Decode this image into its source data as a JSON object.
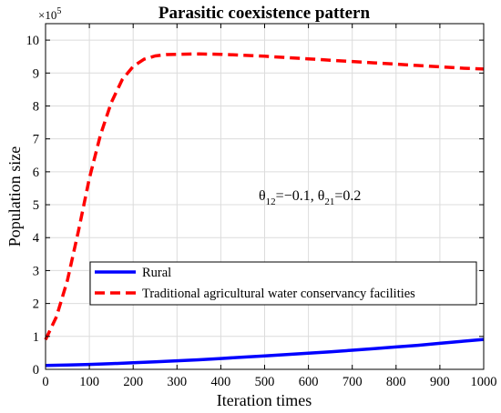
{
  "chart_data": {
    "type": "line",
    "title": "Parasitic coexistence pattern",
    "xlabel": "Iteration times",
    "ylabel": "Population size",
    "y_exponent_label": "×10",
    "y_exponent_power": "5",
    "xlim": [
      0,
      1000
    ],
    "ylim": [
      0,
      10.5
    ],
    "x_ticks": [
      "0",
      "100",
      "200",
      "300",
      "400",
      "500",
      "600",
      "700",
      "800",
      "900",
      "1000"
    ],
    "y_ticks": [
      "0",
      "1",
      "2",
      "3",
      "4",
      "5",
      "6",
      "7",
      "8",
      "9",
      "10"
    ],
    "grid": true,
    "legend_position": "lower-left",
    "annotation": {
      "theta1_symbol": "θ",
      "theta1_sub": "12",
      "theta1_value": "=−0.1, ",
      "theta2_symbol": "θ",
      "theta2_sub": "21",
      "theta2_value": "=0.2"
    },
    "series": [
      {
        "name": "Rural",
        "color": "#0000ff",
        "style": "solid",
        "x": [
          0,
          50,
          100,
          150,
          200,
          250,
          300,
          350,
          400,
          450,
          500,
          550,
          600,
          650,
          700,
          750,
          800,
          850,
          900,
          950,
          1000
        ],
        "y": [
          0.12,
          0.13,
          0.15,
          0.17,
          0.2,
          0.23,
          0.26,
          0.29,
          0.33,
          0.37,
          0.41,
          0.45,
          0.49,
          0.53,
          0.58,
          0.63,
          0.68,
          0.73,
          0.79,
          0.85,
          0.91
        ]
      },
      {
        "name": "Traditional agricultural water conservancy facilities",
        "color": "#ff0000",
        "style": "dashed",
        "x": [
          0,
          25,
          50,
          75,
          100,
          125,
          150,
          175,
          200,
          225,
          250,
          275,
          300,
          350,
          400,
          450,
          500,
          550,
          600,
          650,
          700,
          750,
          800,
          850,
          900,
          950,
          1000
        ],
        "y": [
          0.9,
          1.6,
          2.7,
          4.2,
          5.8,
          7.1,
          8.1,
          8.8,
          9.2,
          9.42,
          9.52,
          9.56,
          9.57,
          9.58,
          9.57,
          9.54,
          9.51,
          9.47,
          9.43,
          9.39,
          9.35,
          9.31,
          9.27,
          9.23,
          9.19,
          9.15,
          9.12
        ]
      }
    ]
  }
}
